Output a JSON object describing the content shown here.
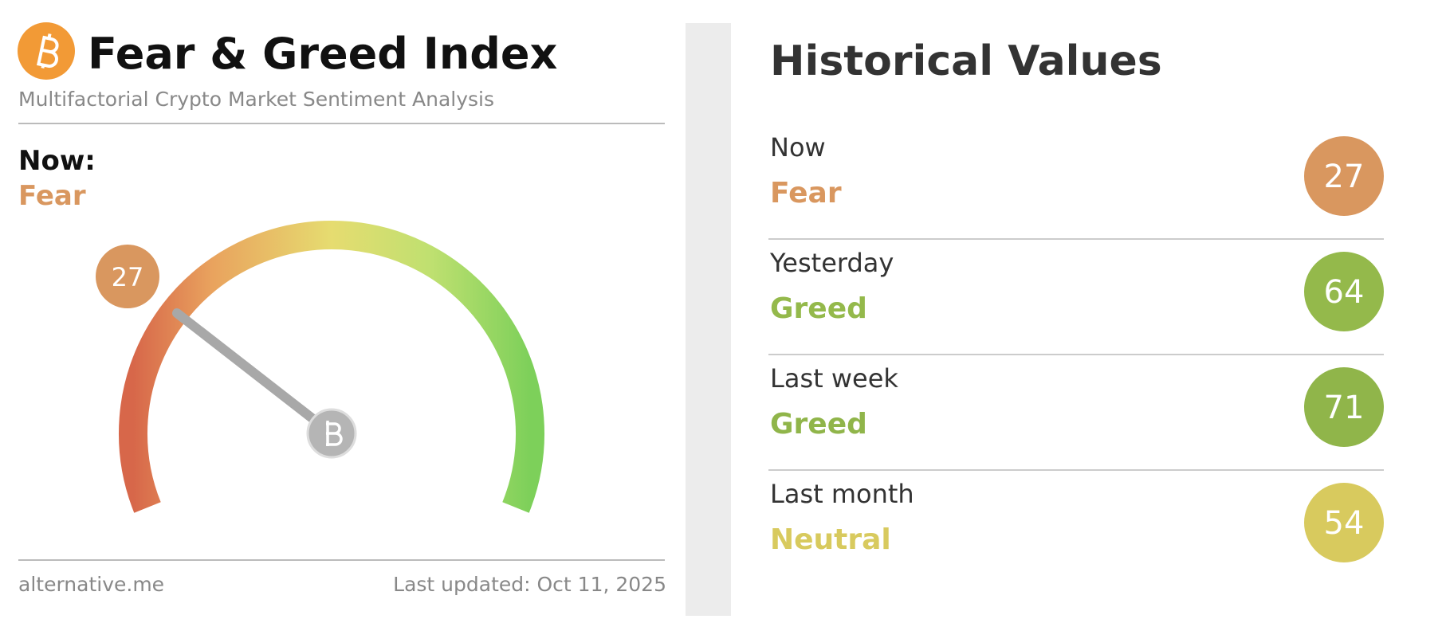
{
  "header": {
    "title": "Fear & Greed Index",
    "subtitle": "Multifactorial Crypto Market Sentiment Analysis"
  },
  "now": {
    "label": "Now:",
    "classification": "Fear",
    "value": 27,
    "color": "#d9975f"
  },
  "footer": {
    "source": "alternative.me",
    "updated": "Last updated: Oct 11, 2025"
  },
  "history": {
    "title": "Historical Values",
    "rows": [
      {
        "label": "Now",
        "classification": "Fear",
        "value": 27,
        "color": "#d9975f"
      },
      {
        "label": "Yesterday",
        "classification": "Greed",
        "value": 64,
        "color": "#94b94b"
      },
      {
        "label": "Last week",
        "classification": "Greed",
        "value": 71,
        "color": "#90b54a"
      },
      {
        "label": "Last month",
        "classification": "Neutral",
        "value": 54,
        "color": "#d8ca5e"
      }
    ]
  }
}
